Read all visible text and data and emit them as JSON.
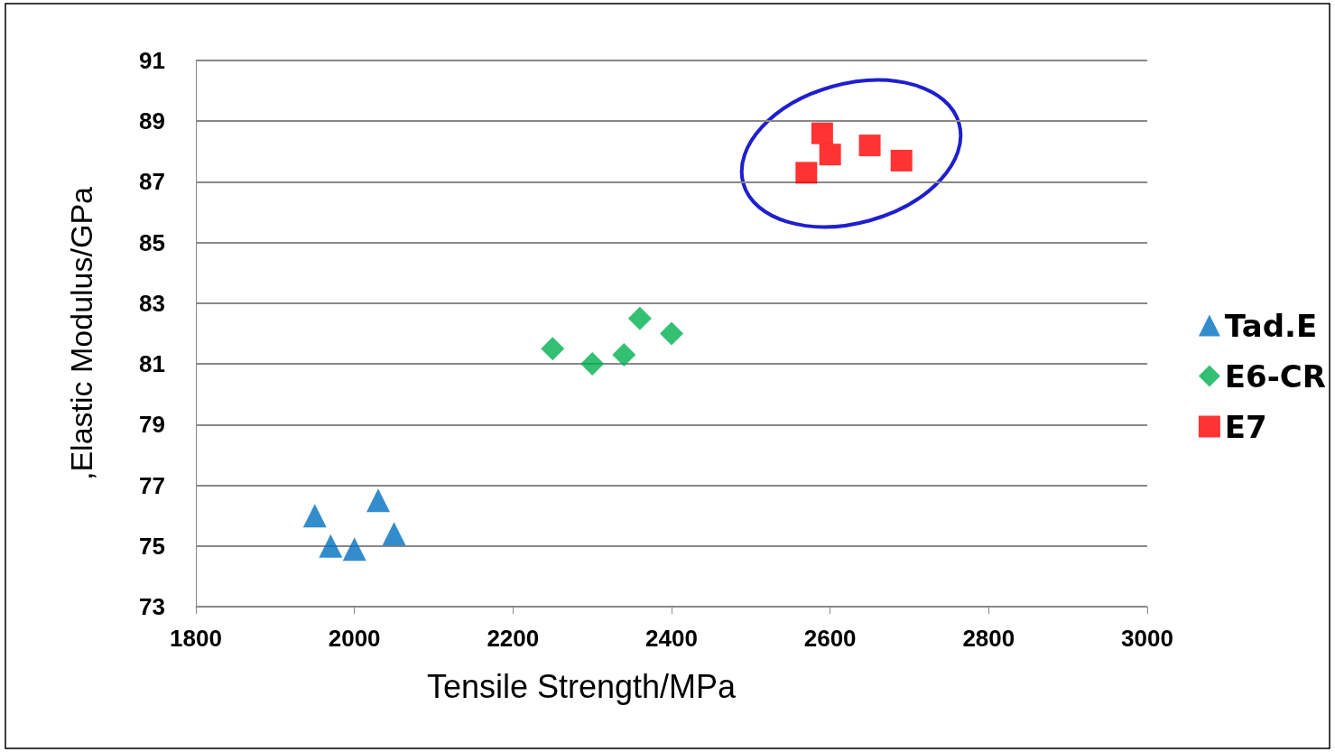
{
  "chart_data": {
    "type": "scatter",
    "xlabel": "Tensile Strength/MPa",
    "ylabel": ",Elastic Modulus/GPa",
    "xlim": [
      1800,
      3000
    ],
    "xticks": [
      1800,
      2000,
      2200,
      2400,
      2600,
      2800,
      3000
    ],
    "ylim": [
      73,
      91
    ],
    "yticks": [
      73,
      75,
      77,
      79,
      81,
      83,
      85,
      87,
      89,
      91
    ],
    "grid": "y",
    "legend": "right",
    "series": [
      {
        "name": "Tad.E",
        "color": "#0070c0",
        "marker": "triangle",
        "x": [
          1950,
          1970,
          2000,
          2030,
          2050
        ],
        "values": [
          76.0,
          75.0,
          74.9,
          76.5,
          75.4
        ]
      },
      {
        "name": "E6-CR",
        "color": "#00b050",
        "marker": "diamond",
        "x": [
          2250,
          2300,
          2340,
          2360,
          2400
        ],
        "values": [
          81.5,
          81.0,
          81.3,
          82.5,
          82.0
        ]
      },
      {
        "name": "E7",
        "color": "#ff0000",
        "marker": "square",
        "x": [
          2570,
          2590,
          2600,
          2650,
          2690
        ],
        "values": [
          87.3,
          88.6,
          87.9,
          88.2,
          87.7
        ]
      }
    ]
  }
}
